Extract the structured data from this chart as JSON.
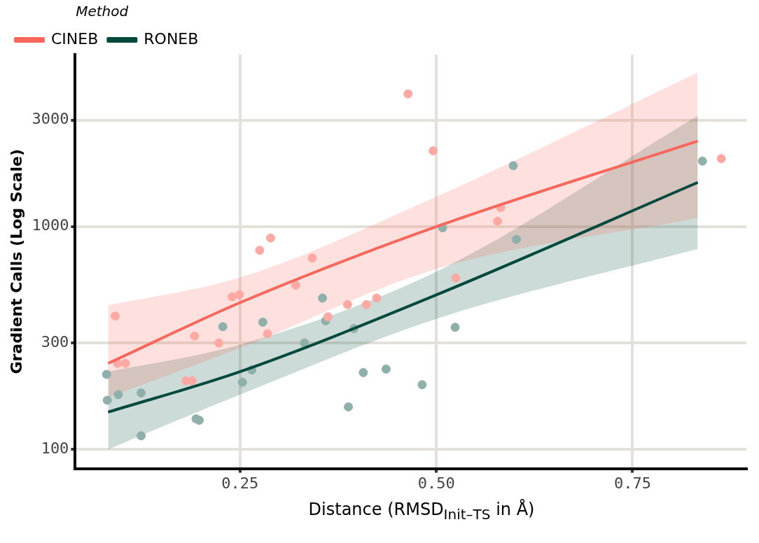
{
  "chart_data": {
    "type": "scatter",
    "xlabel": "Distance (RMSD$_{Init–TS}$ in Å)",
    "ylabel": "Gradient Calls (Log Scale)",
    "legend_title": "Method",
    "legend": "top left",
    "grid": true,
    "log": "y",
    "line_style": "solid",
    "xlim": [
      0.04,
      0.895
    ],
    "xticks": [
      {
        "value": 0.25,
        "label": "0.25"
      },
      {
        "value": 0.5,
        "label": "0.50"
      },
      {
        "value": 0.75,
        "label": "0.75"
      }
    ],
    "ylim": [
      82,
      5900
    ],
    "yticks": [
      100,
      300,
      1000,
      3000
    ],
    "series": [
      {
        "marker": "circle",
        "color": "#fea9a4",
        "x": [
          0.091,
          0.094,
          0.104,
          0.181,
          0.189,
          0.192,
          0.223,
          0.24,
          0.249,
          0.275,
          0.289,
          0.285,
          0.321,
          0.342,
          0.362,
          0.387,
          0.411,
          0.424,
          0.464,
          0.496,
          0.525,
          0.578,
          0.582,
          0.863
        ],
        "values": [
          396,
          243,
          243,
          203,
          203,
          322,
          300,
          483,
          494,
          781,
          887,
          330,
          545,
          721,
          393,
          446,
          446,
          477,
          3930,
          2184,
          587,
          1055,
          1213,
          2015
        ]
      },
      {
        "marker": "circle",
        "color": "#8fb0aa",
        "x": [
          0.08,
          0.081,
          0.095,
          0.124,
          0.124,
          0.194,
          0.198,
          0.228,
          0.253,
          0.265,
          0.279,
          0.332,
          0.355,
          0.359,
          0.388,
          0.395,
          0.407,
          0.436,
          0.482,
          0.508,
          0.524,
          0.598,
          0.602,
          0.839
        ],
        "values": [
          217,
          166,
          176,
          179,
          115,
          137,
          135,
          355,
          200,
          227,
          372,
          300,
          477,
          377,
          155,
          348,
          221,
          229,
          195,
          986,
          353,
          1872,
          875,
          1963
        ]
      },
      {
        "type": "line",
        "marker": "none",
        "name": "CINEB",
        "color": "#f8675c",
        "x": [
          0.082,
          0.25,
          0.5,
          0.833
        ],
        "values": [
          243,
          455,
          997,
          2413
        ],
        "lower": [
          171,
          285,
          644,
          1091
        ],
        "upper": [
          443,
          590,
          1360,
          4896
        ]
      },
      {
        "type": "line",
        "marker": "none",
        "name": "RONEB",
        "color": "#00493c",
        "x": [
          0.082,
          0.25,
          0.5,
          0.833
        ],
        "values": [
          147,
          223,
          493,
          1575
        ],
        "lower": [
          100,
          176,
          385,
          792
        ],
        "upper": [
          223,
          295,
          627,
          3133
        ]
      }
    ]
  }
}
